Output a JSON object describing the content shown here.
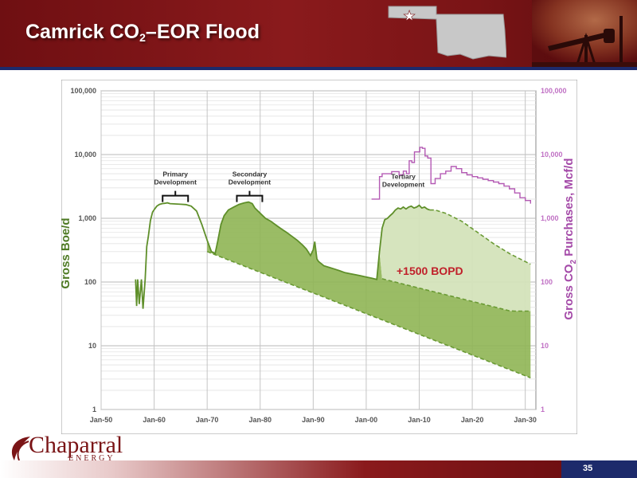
{
  "header": {
    "title_main": "Camrick CO",
    "title_sub": "2",
    "title_tail": "–EOR Flood"
  },
  "footer": {
    "page_number": "35"
  },
  "logo": {
    "name": "Chaparral",
    "tagline": "ENERGY"
  },
  "colors": {
    "brand_maroon": "#7a1416",
    "navy": "#1d2a6b",
    "oil_green": "#5f8f2a",
    "co2_purple": "#b45ab4",
    "area_dark": "#8fb554",
    "area_light": "#d4e3bb"
  },
  "chart_data": {
    "type": "line",
    "x_axis": {
      "ticks": [
        "Jan-50",
        "Jan-60",
        "Jan-70",
        "Jan-80",
        "Jan-90",
        "Jan-00",
        "Jan-10",
        "Jan-20",
        "Jan-30"
      ],
      "range": [
        1950,
        2032
      ]
    },
    "y_left": {
      "label": "Gross Boe/d",
      "scale": "log",
      "ticks": [
        "1",
        "10",
        "100",
        "1,000",
        "10,000",
        "100,000"
      ],
      "range": [
        1,
        100000
      ]
    },
    "y_right": {
      "label_main": "Gross CO",
      "label_sub": "2",
      "label_tail": " Purchases, Mcf/d",
      "scale": "log",
      "ticks": [
        "1",
        "10",
        "100",
        "1,000",
        "10,000",
        "100,000"
      ],
      "range": [
        1,
        100000
      ]
    },
    "grid": true,
    "annotations": [
      {
        "line1": "Primary",
        "line2": "Development",
        "year": 1964,
        "value": 2400
      },
      {
        "line1": "Secondary",
        "line2": "Development",
        "year": 1978,
        "value": 2400
      },
      {
        "line1": "Tertiary",
        "line2": "Development",
        "year": 2007,
        "value": 2200
      },
      {
        "text": "+1500 BOPD",
        "year": 2012,
        "value": 130
      }
    ],
    "series": [
      {
        "name": "Gross Boe/d",
        "x": [
          1956.5,
          1956.7,
          1956.9,
          1957.2,
          1957.6,
          1957.9,
          1958.3,
          1958.6,
          1958.9,
          1959.3,
          1959.7,
          1960.1,
          1960.5,
          1961.0,
          1961.5,
          1962.0,
          1962.5,
          1963.0,
          1964.0,
          1965.0,
          1966.0,
          1967.0,
          1968.0,
          1969.0,
          1970.0,
          1970.8,
          1971.5,
          1972.0,
          1972.6,
          1973.2,
          1974.0,
          1975.0,
          1976.0,
          1977.0,
          1977.8,
          1978.5,
          1979.0,
          1980.0,
          1981.0,
          1982.0,
          1983.0,
          1984.0,
          1985.0,
          1986.0,
          1987.0,
          1988.0,
          1988.7,
          1989.5,
          1990.0,
          1990.3,
          1990.7,
          1991.0,
          1992.0,
          1993.0,
          1994.0,
          1995.0,
          1996.0,
          1997.0,
          1998.0,
          1999.0,
          2000.0,
          2001.0,
          2002.0,
          2002.5,
          2003.0,
          2003.5,
          2004.0,
          2004.5,
          2005.0,
          2005.5,
          2006.0,
          2006.5,
          2007.0,
          2007.5,
          2008.0,
          2008.5,
          2009.0,
          2009.5,
          2010.0,
          2010.5,
          2011.0,
          2011.5,
          2012.0
        ],
        "values": [
          110,
          42,
          110,
          45,
          110,
          38,
          110,
          360,
          520,
          920,
          1250,
          1400,
          1550,
          1650,
          1700,
          1720,
          1750,
          1700,
          1680,
          1660,
          1640,
          1550,
          1300,
          800,
          450,
          300,
          280,
          440,
          800,
          1100,
          1350,
          1500,
          1650,
          1750,
          1800,
          1700,
          1450,
          1200,
          1000,
          900,
          780,
          680,
          600,
          520,
          450,
          380,
          330,
          260,
          320,
          430,
          230,
          210,
          180,
          170,
          160,
          150,
          140,
          135,
          130,
          125,
          120,
          115,
          110,
          300,
          700,
          950,
          1000,
          1100,
          1200,
          1350,
          1450,
          1400,
          1500,
          1400,
          1500,
          1550,
          1450,
          1500,
          1600,
          1450,
          1500,
          1400,
          1350
        ]
      },
      {
        "name": "CO2 Purchases",
        "x": [
          2001.0,
          2001.5,
          2002.5,
          2003.0,
          2003.8,
          2004.8,
          2005.5,
          2006.2,
          2007.0,
          2007.6,
          2008.1,
          2008.6,
          2009.1,
          2009.6,
          2010.1,
          2010.6,
          2011.1,
          2011.6,
          2012.2,
          2013.0,
          2014.0,
          2015.0,
          2016.0,
          2017.0,
          2018.0,
          2019.0,
          2020.0,
          2021.0,
          2022.0,
          2023.0,
          2024.0,
          2025.0,
          2026.0,
          2027.0,
          2028.0,
          2029.0,
          2030.0,
          2031.0
        ],
        "values": [
          2000,
          2000,
          4500,
          5000,
          5000,
          5400,
          5400,
          4800,
          5500,
          5000,
          8000,
          7500,
          11000,
          11000,
          13000,
          12500,
          9500,
          8800,
          3500,
          4200,
          5000,
          5500,
          6500,
          6000,
          5200,
          4800,
          4500,
          4300,
          4100,
          3900,
          3700,
          3500,
          3200,
          2900,
          2500,
          2100,
          1900,
          1700
        ]
      }
    ]
  }
}
